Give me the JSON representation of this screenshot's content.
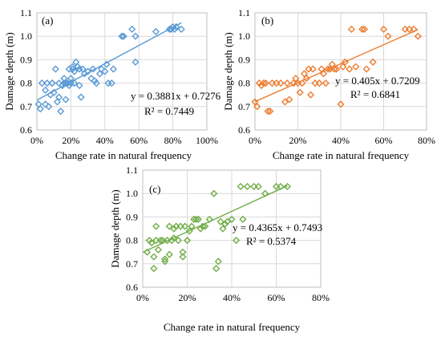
{
  "chart_data": [
    {
      "type": "scatter",
      "panel_label": "(a)",
      "xlabel": "Change rate in natural frequency",
      "ylabel": "Damage depth (m)",
      "xlim": [
        0,
        1.0
      ],
      "ylim": [
        0.6,
        1.1
      ],
      "x_ticks": [
        "0%",
        "20%",
        "40%",
        "60%",
        "80%",
        "100%"
      ],
      "y_ticks": [
        "0.6",
        "0.7",
        "0.8",
        "0.9",
        "1.0",
        "1.1"
      ],
      "grid": true,
      "color": "#5b9bd5",
      "trendline": {
        "slope": 0.3881,
        "intercept": 0.7276,
        "x_range": [
          0.0,
          0.85
        ]
      },
      "equation": "y = 0.3881x + 0.7276",
      "r2": "R² = 0.7449",
      "x": [
        0.01,
        0.03,
        0.05,
        0.06,
        0.08,
        0.09,
        0.1,
        0.11,
        0.12,
        0.13,
        0.14,
        0.15,
        0.16,
        0.17,
        0.17,
        0.18,
        0.18,
        0.19,
        0.19,
        0.2,
        0.2,
        0.21,
        0.21,
        0.22,
        0.22,
        0.23,
        0.24,
        0.25,
        0.25,
        0.26,
        0.27,
        0.28,
        0.3,
        0.32,
        0.33,
        0.34,
        0.35,
        0.37,
        0.38,
        0.4,
        0.41,
        0.42,
        0.44,
        0.45,
        0.5,
        0.51,
        0.56,
        0.58,
        0.58,
        0.7,
        0.78,
        0.79,
        0.8,
        0.81,
        0.82,
        0.85,
        0.02,
        0.05,
        0.07,
        0.09,
        0.13,
        0.15,
        0.16,
        0.17
      ],
      "y": [
        0.71,
        0.8,
        0.71,
        0.8,
        0.75,
        0.8,
        0.76,
        0.86,
        0.72,
        0.8,
        0.68,
        0.79,
        0.8,
        0.73,
        0.8,
        0.8,
        0.8,
        0.79,
        0.86,
        0.8,
        0.82,
        0.86,
        0.87,
        0.85,
        0.8,
        0.89,
        0.87,
        0.86,
        0.79,
        0.74,
        0.86,
        0.84,
        0.85,
        0.82,
        0.86,
        0.81,
        0.8,
        0.84,
        0.86,
        0.85,
        0.88,
        0.8,
        0.8,
        0.86,
        1.0,
        1.0,
        1.03,
        1.0,
        0.89,
        1.02,
        1.03,
        1.03,
        1.04,
        1.03,
        1.04,
        1.03,
        0.69,
        0.77,
        0.7,
        0.8,
        0.74,
        0.79,
        0.82,
        0.8
      ]
    },
    {
      "type": "scatter",
      "panel_label": "(b)",
      "xlabel": "Change rate in natural frequency",
      "ylabel": "Damage depth (m)",
      "xlim": [
        0,
        0.8
      ],
      "ylim": [
        0.6,
        1.1
      ],
      "x_ticks": [
        "0%",
        "20%",
        "40%",
        "60%",
        "80%"
      ],
      "y_ticks": [
        "0.6",
        "0.7",
        "0.8",
        "0.9",
        "1.0",
        "1.1"
      ],
      "grid": true,
      "color": "#ed7d31",
      "trendline": {
        "slope": 0.405,
        "intercept": 0.7209,
        "x_range": [
          0.0,
          0.76
        ]
      },
      "equation": "y = 0.405x + 0.7209",
      "r2": "R² = 0.6841",
      "x": [
        0.0,
        0.01,
        0.02,
        0.03,
        0.04,
        0.05,
        0.06,
        0.07,
        0.08,
        0.1,
        0.12,
        0.14,
        0.15,
        0.16,
        0.18,
        0.19,
        0.2,
        0.21,
        0.22,
        0.23,
        0.24,
        0.25,
        0.26,
        0.27,
        0.28,
        0.3,
        0.31,
        0.32,
        0.33,
        0.34,
        0.35,
        0.36,
        0.37,
        0.38,
        0.4,
        0.41,
        0.42,
        0.44,
        0.45,
        0.47,
        0.5,
        0.51,
        0.52,
        0.55,
        0.6,
        0.62,
        0.7,
        0.72,
        0.74,
        0.76
      ],
      "y": [
        0.72,
        0.7,
        0.8,
        0.79,
        0.8,
        0.8,
        0.68,
        0.68,
        0.8,
        0.8,
        0.8,
        0.72,
        0.8,
        0.73,
        0.8,
        0.82,
        0.8,
        0.76,
        0.8,
        0.84,
        0.82,
        0.86,
        0.75,
        0.86,
        0.8,
        0.8,
        0.86,
        0.84,
        0.8,
        0.86,
        0.86,
        0.88,
        0.86,
        0.86,
        0.71,
        0.87,
        0.89,
        0.86,
        1.03,
        0.87,
        1.03,
        1.03,
        0.86,
        0.89,
        1.03,
        1.0,
        1.03,
        1.03,
        1.03,
        1.0
      ]
    },
    {
      "type": "scatter",
      "panel_label": "(c)",
      "xlabel": "Change rate in natural frequency",
      "ylabel": "Damage depth (m)",
      "xlim": [
        0,
        0.8
      ],
      "ylim": [
        0.6,
        1.1
      ],
      "x_ticks": [
        "0%",
        "20%",
        "40%",
        "60%",
        "80%"
      ],
      "y_ticks": [
        "0.6",
        "0.7",
        "0.8",
        "0.9",
        "1.0",
        "1.1"
      ],
      "grid": true,
      "color": "#70ad47",
      "trendline": {
        "slope": 0.4365,
        "intercept": 0.7493,
        "x_range": [
          0.0,
          0.65
        ]
      },
      "equation": "y = 0.4365x + 0.7493",
      "r2": "R² = 0.5374",
      "x": [
        0.02,
        0.03,
        0.04,
        0.05,
        0.06,
        0.07,
        0.08,
        0.09,
        0.1,
        0.11,
        0.12,
        0.13,
        0.14,
        0.15,
        0.16,
        0.17,
        0.18,
        0.19,
        0.2,
        0.21,
        0.22,
        0.23,
        0.24,
        0.25,
        0.26,
        0.27,
        0.28,
        0.3,
        0.32,
        0.33,
        0.34,
        0.35,
        0.36,
        0.37,
        0.38,
        0.4,
        0.42,
        0.44,
        0.45,
        0.47,
        0.5,
        0.52,
        0.55,
        0.6,
        0.62,
        0.65,
        0.05,
        0.06,
        0.1,
        0.14,
        0.12,
        0.18
      ],
      "y": [
        0.75,
        0.8,
        0.79,
        0.68,
        0.8,
        0.76,
        0.8,
        0.8,
        0.72,
        0.8,
        0.86,
        0.8,
        0.85,
        0.86,
        0.8,
        0.86,
        0.75,
        0.86,
        0.8,
        0.84,
        0.86,
        0.89,
        0.89,
        0.89,
        0.85,
        0.86,
        0.86,
        0.89,
        1.0,
        0.68,
        0.71,
        0.88,
        0.85,
        0.87,
        0.88,
        0.89,
        0.8,
        1.03,
        0.89,
        1.03,
        1.03,
        1.03,
        1.0,
        1.03,
        1.03,
        1.03,
        0.73,
        0.86,
        0.71,
        0.81,
        0.74,
        0.73
      ]
    }
  ]
}
